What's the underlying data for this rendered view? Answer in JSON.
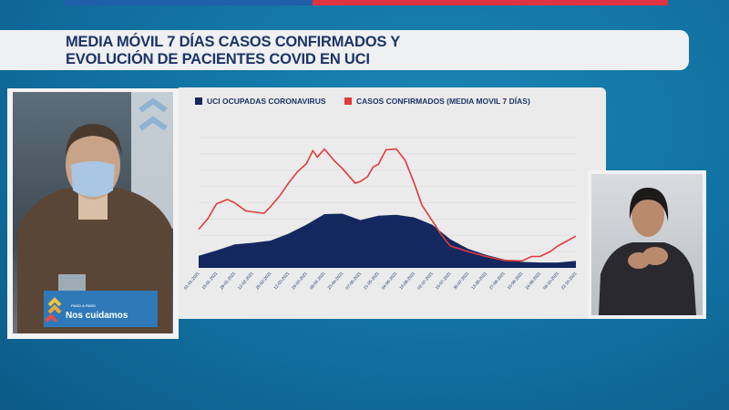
{
  "title": {
    "line1": "MEDIA MÓVIL 7 DÍAS CASOS CONFIRMADOS Y",
    "line2": "EVOLUCIÓN DE PACIENTES COVID EN UCI"
  },
  "podium_sign": {
    "small": "PASO A PASO",
    "main": "Nos cuidamos"
  },
  "colors": {
    "uci": "#14285f",
    "cases": "#e23a3f",
    "title": "#1d3466",
    "bar_red": "#e0323f",
    "bar_blue": "#1f5fa8"
  },
  "chart_data": {
    "type": "line",
    "title": "",
    "xlabel": "",
    "ylabel": "",
    "note": "x in days since 01-01-2021; y in relative gridline units (no y-axis labels shown)",
    "ylim": [
      0,
      8
    ],
    "xlim": [
      0,
      294
    ],
    "grid": true,
    "legend_position": "top-left",
    "tick_labels": [
      "01-01-2021",
      "15-01-2021",
      "29-01-2021",
      "12-02-2021",
      "26-02-2021",
      "12-03-2021",
      "26-03-2021",
      "09-04-2021",
      "23-04-2021",
      "07-05-2021",
      "21-05-2021",
      "04-06-2021",
      "18-06-2021",
      "02-07-2021",
      "16-07-2021",
      "30-07-2021",
      "13-08-2021",
      "27-08-2021",
      "10-09-2021",
      "24-09-2021",
      "08-10-2021",
      "22-10-2021"
    ],
    "series": [
      {
        "name": "UCI OCUPADAS CORONAVIRUS",
        "kind": "area",
        "x": [
          0,
          14,
          28,
          42,
          56,
          70,
          84,
          98,
          112,
          126,
          140,
          154,
          168,
          182,
          196,
          210,
          224,
          238,
          252,
          266,
          280,
          294
        ],
        "y": [
          0.74,
          1.07,
          1.44,
          1.54,
          1.67,
          2.1,
          2.65,
          3.3,
          3.33,
          2.93,
          3.2,
          3.26,
          3.1,
          2.65,
          1.76,
          1.17,
          0.8,
          0.52,
          0.37,
          0.33,
          0.33,
          0.43
        ]
      },
      {
        "name": "CASOS CONFIRMADOS (MEDIA MOVIL 7 DÍAS)",
        "kind": "line",
        "x": [
          0,
          7,
          14,
          22.5,
          28,
          36.7,
          42,
          51,
          56,
          63,
          70,
          77,
          84,
          89,
          92.5,
          98,
          105.5,
          112,
          122,
          126,
          131.6,
          136,
          140,
          146,
          153,
          154,
          161,
          168,
          174,
          182,
          188.5,
          196,
          210,
          224,
          238,
          252,
          259.6,
          266,
          274,
          280,
          294
        ],
        "y": [
          2.37,
          3.0,
          3.94,
          4.2,
          4.0,
          3.5,
          3.44,
          3.35,
          3.76,
          4.4,
          5.2,
          5.9,
          6.4,
          7.2,
          6.8,
          7.3,
          6.6,
          6.1,
          5.2,
          5.3,
          5.6,
          6.2,
          6.35,
          7.25,
          7.3,
          7.3,
          6.6,
          5.2,
          3.85,
          2.9,
          2.1,
          1.35,
          1.0,
          0.7,
          0.46,
          0.43,
          0.7,
          0.7,
          1.0,
          1.35,
          1.95
        ]
      }
    ]
  }
}
